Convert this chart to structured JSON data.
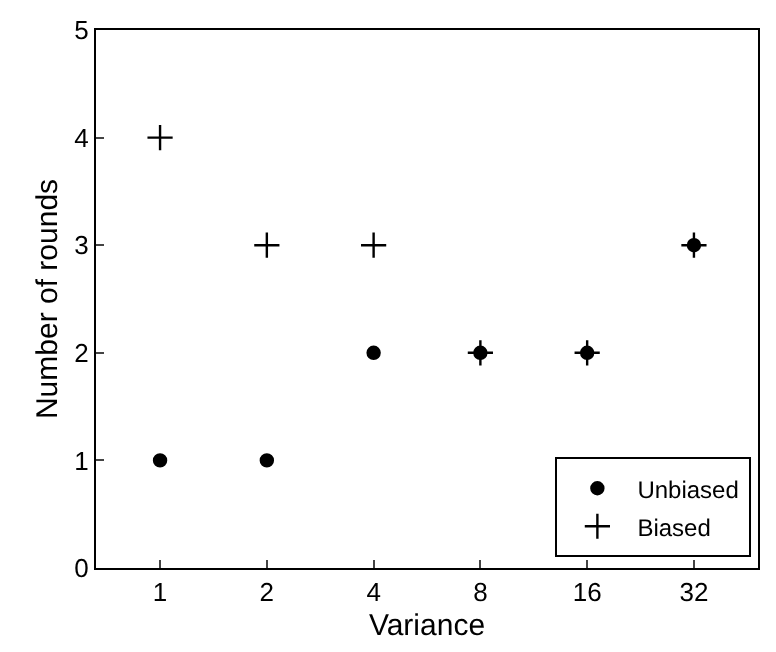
{
  "chart_data": {
    "type": "scatter",
    "xlabel": "Variance",
    "ylabel": "Number of rounds",
    "categories": [
      "1",
      "2",
      "4",
      "8",
      "16",
      "32"
    ],
    "series": [
      {
        "name": "Unbiased",
        "color": "#000000",
        "marker": "circle",
        "values": [
          1,
          1,
          2,
          2,
          2,
          3
        ]
      },
      {
        "name": "Biased",
        "color": "#000000",
        "marker": "cross",
        "values": [
          4,
          3,
          3,
          2,
          2,
          3
        ]
      }
    ],
    "ylim": [
      0,
      5
    ],
    "yticks": [
      0,
      1,
      2,
      3,
      4,
      5
    ],
    "legend": "bottom right"
  }
}
